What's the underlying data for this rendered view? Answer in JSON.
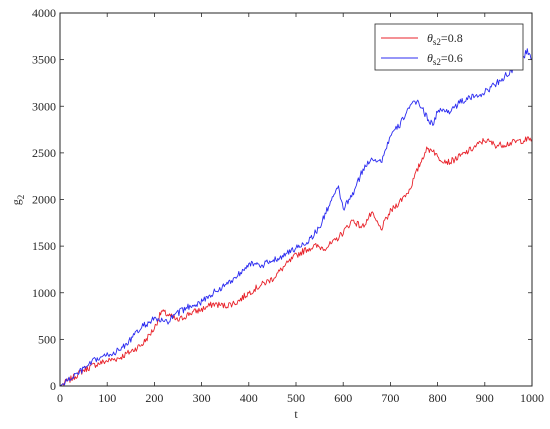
{
  "chart_data": {
    "type": "line",
    "title": "",
    "xlabel": "t",
    "ylabel_base": "g",
    "ylabel_sub": "2",
    "xlim": [
      0,
      1000
    ],
    "ylim": [
      0,
      4000
    ],
    "xticks": [
      0,
      100,
      200,
      300,
      400,
      500,
      600,
      700,
      800,
      900,
      1000
    ],
    "yticks": [
      0,
      500,
      1000,
      1500,
      2000,
      2500,
      3000,
      3500,
      4000
    ],
    "grid": false,
    "legend_position": "top-right",
    "series": [
      {
        "name_base": "θ",
        "name_sub": "s2",
        "name_value": "=0.8",
        "color": "#e8232b",
        "x": [
          0,
          25,
          50,
          75,
          100,
          125,
          150,
          175,
          200,
          215,
          230,
          250,
          275,
          300,
          325,
          350,
          375,
          400,
          425,
          450,
          475,
          500,
          520,
          540,
          560,
          580,
          600,
          620,
          640,
          660,
          680,
          700,
          720,
          740,
          760,
          775,
          790,
          800,
          825,
          850,
          875,
          900,
          925,
          950,
          975,
          1000
        ],
        "values": [
          0,
          80,
          170,
          230,
          270,
          300,
          370,
          450,
          620,
          800,
          760,
          700,
          780,
          820,
          880,
          860,
          900,
          1000,
          1080,
          1150,
          1280,
          1400,
          1460,
          1500,
          1480,
          1540,
          1650,
          1780,
          1700,
          1850,
          1680,
          1870,
          1980,
          2100,
          2350,
          2530,
          2540,
          2450,
          2400,
          2470,
          2550,
          2640,
          2580,
          2600,
          2630,
          2650
        ]
      },
      {
        "name_base": "θ",
        "name_sub": "s2",
        "name_value": "=0.6",
        "color": "#2c2cf0",
        "x": [
          0,
          25,
          50,
          75,
          100,
          125,
          150,
          175,
          200,
          225,
          250,
          275,
          300,
          325,
          350,
          375,
          400,
          425,
          450,
          475,
          500,
          525,
          550,
          575,
          590,
          600,
          620,
          640,
          660,
          680,
          700,
          720,
          740,
          760,
          775,
          790,
          800,
          825,
          850,
          875,
          900,
          925,
          950,
          975,
          990,
          1000
        ],
        "values": [
          0,
          90,
          180,
          280,
          330,
          380,
          500,
          640,
          720,
          680,
          780,
          860,
          900,
          1000,
          1080,
          1180,
          1320,
          1280,
          1350,
          1400,
          1480,
          1550,
          1700,
          2000,
          2120,
          1900,
          2050,
          2300,
          2450,
          2400,
          2680,
          2800,
          3000,
          3050,
          2900,
          2800,
          2950,
          2950,
          3050,
          3100,
          3150,
          3250,
          3350,
          3450,
          3600,
          3500
        ]
      }
    ]
  }
}
